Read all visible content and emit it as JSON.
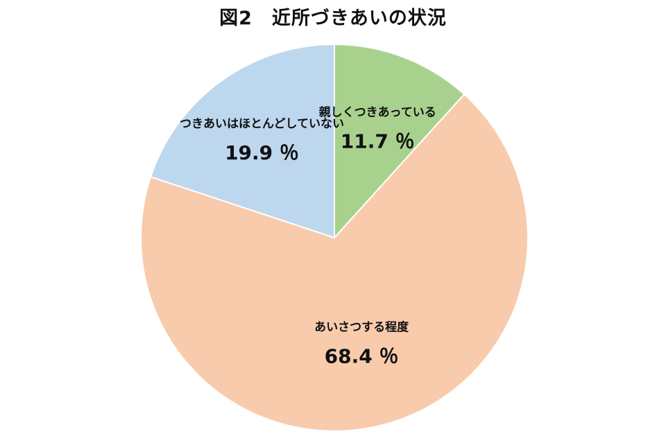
{
  "chart_data": {
    "type": "pie",
    "title": "図2　近所づきあいの状況",
    "start": "12 o'clock",
    "direction": "clockwise",
    "slices": [
      {
        "label": "親しくつきあっている",
        "value": 11.7,
        "value_text": "11.7 ％",
        "color": "#a9d18e"
      },
      {
        "label": "あいさつする程度",
        "value": 68.4,
        "value_text": "68.4 ％",
        "color": "#f8cbad"
      },
      {
        "label": "つきあいはほとんどしていない",
        "value": 19.9,
        "value_text": "19.9 ％",
        "color": "#bdd7ee"
      }
    ]
  }
}
